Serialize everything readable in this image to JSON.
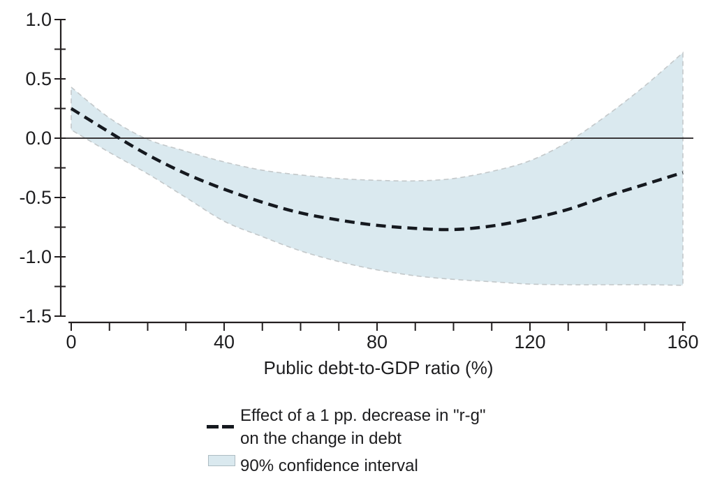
{
  "figure": {
    "xlabel": "Public debt-to-GDP ratio (%)",
    "y_tick_labels": [
      "1.0",
      "0.5",
      "0.0",
      "-0.5",
      "-1.0",
      "-1.5"
    ],
    "x_tick_labels": [
      "0",
      "40",
      "80",
      "120",
      "160"
    ]
  },
  "legend": {
    "series_label_line1": "Effect of a 1 pp. decrease in \"r-g\"",
    "series_label_line2": "on the change in debt",
    "ci_label": "90% confidence interval"
  },
  "colors": {
    "band_fill": "#dae9ef",
    "band_edge": "#c3c8ca",
    "line": "#15191f",
    "axis": "#231f20",
    "text": "#1d1d1f"
  },
  "chart_data": {
    "type": "line",
    "title": "",
    "xlabel": "Public debt-to-GDP ratio (%)",
    "ylabel": "",
    "xlim": [
      0,
      160
    ],
    "ylim": [
      -1.5,
      1.0
    ],
    "x_major_ticks": [
      0,
      40,
      80,
      120,
      160
    ],
    "x_minor_tick_step": 10,
    "y_major_ticks": [
      1.0,
      0.5,
      0.0,
      -0.5,
      -1.0,
      -1.5
    ],
    "y_minor_tick_step": 0.25,
    "grid": false,
    "zero_line": true,
    "legend_position": "below",
    "x": [
      0,
      10,
      20,
      30,
      40,
      50,
      60,
      70,
      80,
      90,
      100,
      110,
      120,
      130,
      140,
      150,
      160
    ],
    "series": [
      {
        "name": "Effect of a 1 pp. decrease in \"r-g\" on the change in debt",
        "style": "dashed-black",
        "values": [
          0.25,
          0.05,
          -0.14,
          -0.3,
          -0.43,
          -0.54,
          -0.63,
          -0.69,
          -0.735,
          -0.76,
          -0.77,
          -0.74,
          -0.68,
          -0.6,
          -0.49,
          -0.39,
          -0.29
        ]
      }
    ],
    "band": {
      "label": "90% confidence interval",
      "style": "filled-dashed-gray-edge",
      "upper": [
        0.43,
        0.17,
        -0.01,
        -0.11,
        -0.2,
        -0.27,
        -0.31,
        -0.34,
        -0.355,
        -0.36,
        -0.34,
        -0.28,
        -0.19,
        -0.03,
        0.19,
        0.44,
        0.72
      ],
      "lower": [
        0.07,
        -0.12,
        -0.3,
        -0.5,
        -0.7,
        -0.83,
        -0.95,
        -1.04,
        -1.11,
        -1.16,
        -1.19,
        -1.21,
        -1.23,
        -1.235,
        -1.235,
        -1.235,
        -1.24
      ]
    }
  }
}
